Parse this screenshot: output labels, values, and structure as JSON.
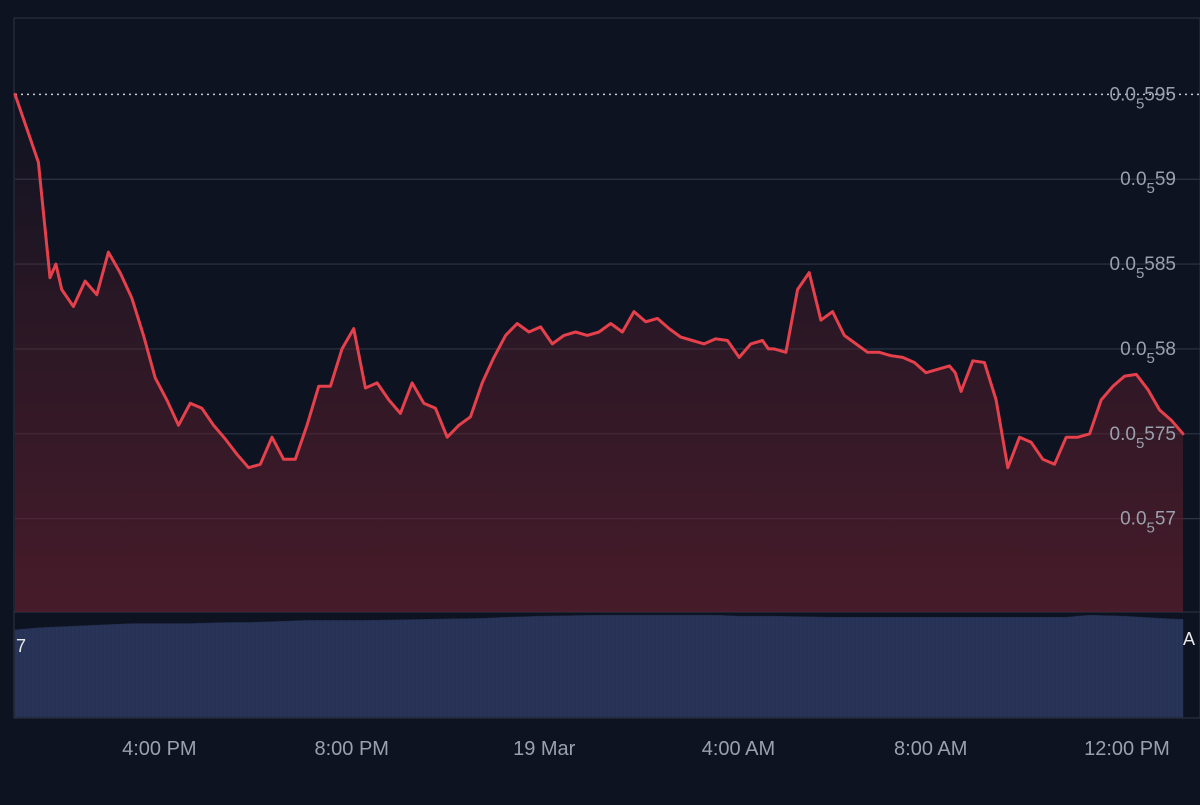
{
  "chart_data": {
    "type": "line",
    "title": "",
    "xlabel": "",
    "ylabel": "",
    "colors": {
      "background": "#0e1321",
      "line": "#e5404b",
      "area_top": "#5a1e2c",
      "grid": "#2e3546",
      "axis_text": "#9aa0ad",
      "volume": "#283459",
      "reference_line": "#c9ccd3"
    },
    "x_ticks": [
      {
        "t": 0.1236,
        "label": "4:00 PM"
      },
      {
        "t": 0.2883,
        "label": "8:00 PM"
      },
      {
        "t": 0.4531,
        "label": "19 Mar"
      },
      {
        "t": 0.6194,
        "label": "4:00 AM"
      },
      {
        "t": 0.784,
        "label": "8:00 AM"
      },
      {
        "t": 0.952,
        "label": "12:00 PM"
      }
    ],
    "y_ticks": [
      {
        "value": 0.595,
        "label": "0.0₅595"
      },
      {
        "value": 0.59,
        "label": "0.0₅59"
      },
      {
        "value": 0.585,
        "label": "0.0₅585"
      },
      {
        "value": 0.58,
        "label": "0.0₅58"
      },
      {
        "value": 0.575,
        "label": "0.0₅575"
      },
      {
        "value": 0.57,
        "label": "0.0₅57"
      }
    ],
    "ylim": [
      0.5645,
      0.5995
    ],
    "reference_line": {
      "value": 0.595,
      "style": "dotted"
    },
    "volume_axis_label_left": "7",
    "volume_axis_label_right": "A",
    "price_series": {
      "name": "",
      "x": [
        0,
        0.01,
        0.02,
        0.03,
        0.035,
        0.04,
        0.05,
        0.06,
        0.07,
        0.08,
        0.09,
        0.1,
        0.11,
        0.12,
        0.13,
        0.14,
        0.15,
        0.16,
        0.17,
        0.18,
        0.19,
        0.2,
        0.21,
        0.22,
        0.23,
        0.24,
        0.25,
        0.26,
        0.27,
        0.28,
        0.29,
        0.3,
        0.31,
        0.32,
        0.33,
        0.34,
        0.35,
        0.36,
        0.37,
        0.38,
        0.39,
        0.4,
        0.41,
        0.42,
        0.43,
        0.44,
        0.45,
        0.46,
        0.47,
        0.48,
        0.49,
        0.5,
        0.51,
        0.52,
        0.53,
        0.54,
        0.55,
        0.56,
        0.57,
        0.58,
        0.59,
        0.6,
        0.61,
        0.62,
        0.63,
        0.64,
        0.645,
        0.65,
        0.66,
        0.67,
        0.68,
        0.69,
        0.7,
        0.71,
        0.72,
        0.73,
        0.74,
        0.75,
        0.76,
        0.77,
        0.78,
        0.79,
        0.8,
        0.805,
        0.81,
        0.82,
        0.83,
        0.84,
        0.85,
        0.86,
        0.87,
        0.88,
        0.89,
        0.9,
        0.91,
        0.92,
        0.93,
        0.94,
        0.95,
        0.96,
        0.97,
        0.98,
        0.99,
        1.0
      ],
      "y": [
        0.595,
        0.593,
        0.591,
        0.5842,
        0.585,
        0.5835,
        0.5825,
        0.584,
        0.5832,
        0.5857,
        0.5845,
        0.583,
        0.5808,
        0.5783,
        0.577,
        0.5755,
        0.5768,
        0.5765,
        0.5755,
        0.5747,
        0.5738,
        0.573,
        0.5732,
        0.5748,
        0.5735,
        0.5735,
        0.5755,
        0.5778,
        0.5778,
        0.58,
        0.5812,
        0.5777,
        0.578,
        0.577,
        0.5762,
        0.578,
        0.5768,
        0.5765,
        0.5748,
        0.5755,
        0.576,
        0.578,
        0.5795,
        0.5808,
        0.5815,
        0.581,
        0.5813,
        0.5803,
        0.5808,
        0.581,
        0.5808,
        0.581,
        0.5815,
        0.581,
        0.5822,
        0.5816,
        0.5818,
        0.5812,
        0.5807,
        0.5805,
        0.5803,
        0.5806,
        0.5805,
        0.5795,
        0.5803,
        0.5805,
        0.58,
        0.58,
        0.5798,
        0.5835,
        0.5845,
        0.5817,
        0.5822,
        0.5808,
        0.5803,
        0.5798,
        0.5798,
        0.5796,
        0.5795,
        0.5792,
        0.5786,
        0.5788,
        0.579,
        0.5786,
        0.5775,
        0.5793,
        0.5792,
        0.577,
        0.573,
        0.5748,
        0.5745,
        0.5735,
        0.5732,
        0.5748,
        0.5748,
        0.575,
        0.577,
        0.5778,
        0.5784,
        0.5785,
        0.5776,
        0.5764,
        0.5758,
        0.575
      ]
    },
    "volume_series": {
      "x": [
        0,
        0.02,
        0.04,
        0.06,
        0.08,
        0.1,
        0.12,
        0.15,
        0.18,
        0.2,
        0.25,
        0.3,
        0.35,
        0.4,
        0.42,
        0.45,
        0.5,
        0.55,
        0.6,
        0.62,
        0.65,
        0.7,
        0.72,
        0.75,
        0.8,
        0.85,
        0.9,
        0.92,
        0.95,
        0.98,
        1.0
      ],
      "y": [
        0.83,
        0.85,
        0.86,
        0.87,
        0.88,
        0.89,
        0.89,
        0.89,
        0.9,
        0.9,
        0.92,
        0.92,
        0.93,
        0.94,
        0.95,
        0.96,
        0.97,
        0.97,
        0.97,
        0.96,
        0.96,
        0.95,
        0.95,
        0.95,
        0.95,
        0.95,
        0.95,
        0.97,
        0.96,
        0.94,
        0.93
      ]
    }
  }
}
